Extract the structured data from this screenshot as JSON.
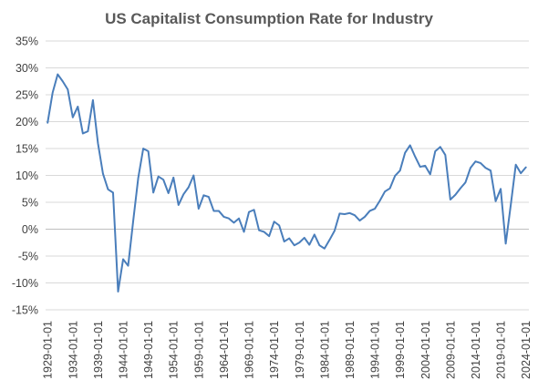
{
  "chart_data": {
    "type": "line",
    "title": "US Capitalist Consumption Rate for Industry",
    "xlabel": "",
    "ylabel": "",
    "ylim": [
      -15,
      35
    ],
    "y_ticks": [
      35,
      30,
      25,
      20,
      15,
      10,
      5,
      0,
      -5,
      -10,
      -15
    ],
    "y_tick_labels": [
      "35%",
      "30%",
      "25%",
      "20%",
      "15%",
      "10%",
      "5%",
      "0%",
      "-5%",
      "-10%",
      "-15%"
    ],
    "x_tick_labels": [
      "1929-01-01",
      "1934-01-01",
      "1939-01-01",
      "1944-01-01",
      "1949-01-01",
      "1954-01-01",
      "1959-01-01",
      "1964-01-01",
      "1969-01-01",
      "1974-01-01",
      "1979-01-01",
      "1984-01-01",
      "1989-01-01",
      "1994-01-01",
      "1999-01-01",
      "2004-01-01",
      "2009-01-01",
      "2014-01-01",
      "2019-01-01",
      "2024-01-01"
    ],
    "x_tick_years": [
      1929,
      1934,
      1939,
      1944,
      1949,
      1954,
      1959,
      1964,
      1969,
      1974,
      1979,
      1984,
      1989,
      1994,
      1999,
      2004,
      2009,
      2014,
      2019,
      2024
    ],
    "grid": "horizontal",
    "legend": "none",
    "colors": {
      "series": "#4a7ebb",
      "grid": "#d9d9d9",
      "text": "#404040",
      "title": "#595959"
    },
    "x": [
      1929,
      1930,
      1931,
      1932,
      1933,
      1934,
      1935,
      1936,
      1937,
      1938,
      1939,
      1940,
      1941,
      1942,
      1943,
      1944,
      1945,
      1946,
      1947,
      1948,
      1949,
      1950,
      1951,
      1952,
      1953,
      1954,
      1955,
      1956,
      1957,
      1958,
      1959,
      1960,
      1961,
      1962,
      1963,
      1964,
      1965,
      1966,
      1967,
      1968,
      1969,
      1970,
      1971,
      1972,
      1973,
      1974,
      1975,
      1976,
      1977,
      1978,
      1979,
      1980,
      1981,
      1982,
      1983,
      1984,
      1985,
      1986,
      1987,
      1988,
      1989,
      1990,
      1991,
      1992,
      1993,
      1994,
      1995,
      1996,
      1997,
      1998,
      1999,
      2000,
      2001,
      2002,
      2003,
      2004,
      2005,
      2006,
      2007,
      2008,
      2009,
      2010,
      2011,
      2012,
      2013,
      2014,
      2015,
      2016,
      2017,
      2018,
      2019,
      2020,
      2021,
      2022,
      2023,
      2024
    ],
    "series": [
      {
        "values": [
          19.8,
          25.4,
          28.8,
          27.5,
          26.0,
          20.8,
          22.8,
          17.8,
          18.2,
          24.0,
          16.0,
          10.3,
          7.4,
          6.8,
          -11.6,
          -5.6,
          -6.8,
          1.5,
          9.5,
          15.0,
          14.5,
          6.8,
          9.8,
          9.2,
          6.7,
          9.6,
          4.5,
          6.5,
          7.8,
          10.0,
          3.8,
          6.3,
          6.0,
          3.4,
          3.4,
          2.3,
          2.0,
          1.2,
          2.0,
          -0.5,
          3.2,
          3.6,
          -0.2,
          -0.5,
          -1.3,
          1.4,
          0.7,
          -2.3,
          -1.7,
          -3.0,
          -2.5,
          -1.6,
          -2.9,
          -1.0,
          -3.0,
          -3.6,
          -2.0,
          -0.3,
          2.9,
          2.8,
          3.0,
          2.6,
          1.6,
          2.3,
          3.4,
          3.8,
          5.3,
          7.0,
          7.6,
          9.9,
          10.9,
          14.2,
          15.6,
          13.5,
          11.6,
          11.8,
          10.2,
          14.5,
          15.3,
          13.8,
          5.5,
          6.4,
          7.6,
          8.7,
          11.4,
          12.6,
          12.3,
          11.4,
          10.9,
          5.2,
          7.5,
          -2.7,
          4.5,
          12.0,
          10.4,
          11.5
        ]
      }
    ]
  }
}
